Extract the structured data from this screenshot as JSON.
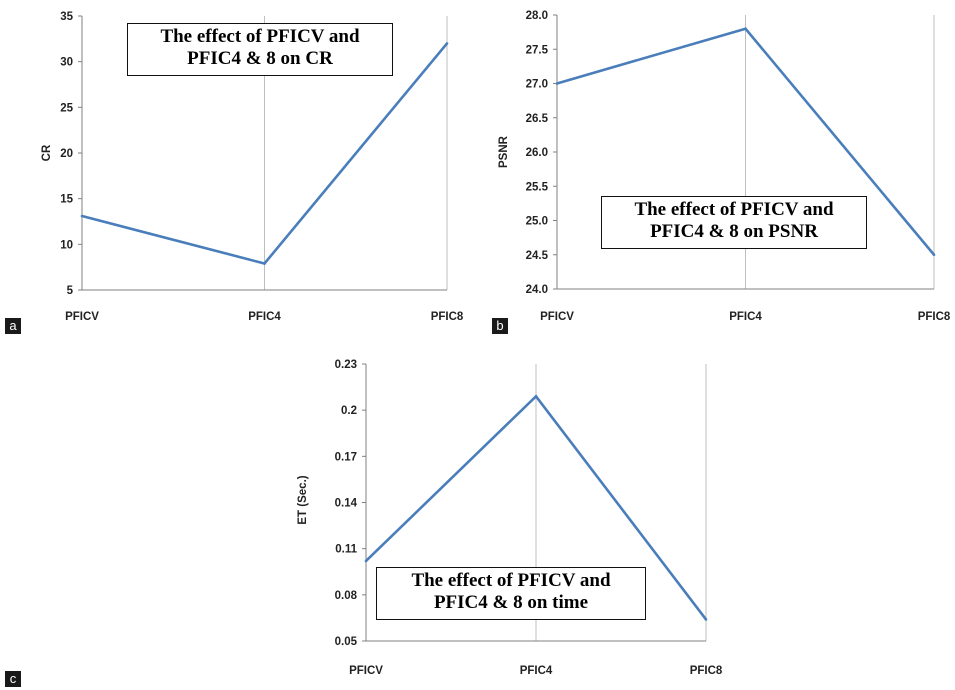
{
  "panel_labels": [
    "a",
    "b",
    "c"
  ],
  "colors": {
    "series": "#4a7ebb",
    "grid": "#bfbfbf",
    "axis": "#808080"
  },
  "chart_data": [
    {
      "type": "line",
      "categories": [
        "PFICV",
        "PFIC4",
        "PFIC8"
      ],
      "values": [
        13.1,
        7.9,
        32
      ],
      "ylabel": "CR",
      "ylim": [
        5,
        35
      ],
      "yticks": [
        "5",
        "10",
        "15",
        "20",
        "25",
        "30",
        "35"
      ],
      "title_lines": [
        "The effect of PFICV and",
        "PFIC4 & 8 on CR"
      ],
      "grid": "vertical"
    },
    {
      "type": "line",
      "categories": [
        "PFICV",
        "PFIC4",
        "PFIC8"
      ],
      "values": [
        27.0,
        27.8,
        24.5
      ],
      "ylabel": "PSNR",
      "ylim": [
        24.0,
        28.0
      ],
      "yticks": [
        "24.0",
        "24.5",
        "25.0",
        "25.5",
        "26.0",
        "26.5",
        "27.0",
        "27.5",
        "28.0"
      ],
      "title_lines": [
        "The effect of PFICV and",
        "PFIC4 & 8 on PSNR"
      ],
      "grid": "vertical"
    },
    {
      "type": "line",
      "categories": [
        "PFICV",
        "PFIC4",
        "PFIC8"
      ],
      "values": [
        0.102,
        0.209,
        0.064
      ],
      "ylabel": "ET (Sec.)",
      "ylim": [
        0.05,
        0.23
      ],
      "yticks": [
        "0.05",
        "0.08",
        "0.11",
        "0.14",
        "0.17",
        "0.2",
        "0.23"
      ],
      "title_lines": [
        "The effect of PFICV and",
        "PFIC4 & 8 on time"
      ],
      "grid": "vertical"
    }
  ]
}
